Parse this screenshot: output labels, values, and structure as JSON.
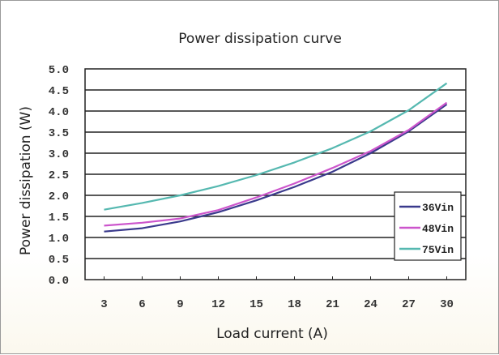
{
  "chart_data": {
    "type": "line",
    "title": "Power dissipation curve",
    "xlabel": "Load current (A)",
    "ylabel": "Power dissipation (W)",
    "x": [
      3,
      6,
      9,
      12,
      15,
      18,
      21,
      24,
      27,
      30
    ],
    "x_tick_labels": [
      "3",
      "6",
      "9",
      "12",
      "15",
      "18",
      "21",
      "24",
      "27",
      "30"
    ],
    "y_tick_labels": [
      "0.0",
      "0.5",
      "1.0",
      "1.5",
      "2.0",
      "2.5",
      "3.0",
      "3.5",
      "4.0",
      "4.5",
      "5.0"
    ],
    "ylim": [
      0,
      5
    ],
    "grid": true,
    "legend_position": "right",
    "series": [
      {
        "name": "36Vin",
        "color": "#3a3a8c",
        "values": [
          1.14,
          1.22,
          1.38,
          1.6,
          1.88,
          2.2,
          2.56,
          3.0,
          3.52,
          4.16
        ]
      },
      {
        "name": "48Vin",
        "color": "#cc55cc",
        "values": [
          1.28,
          1.35,
          1.45,
          1.65,
          1.95,
          2.28,
          2.65,
          3.05,
          3.55,
          4.2
        ]
      },
      {
        "name": "75Vin",
        "color": "#55b8b0",
        "values": [
          1.66,
          1.82,
          2.0,
          2.22,
          2.48,
          2.78,
          3.12,
          3.52,
          4.02,
          4.66
        ]
      }
    ]
  }
}
